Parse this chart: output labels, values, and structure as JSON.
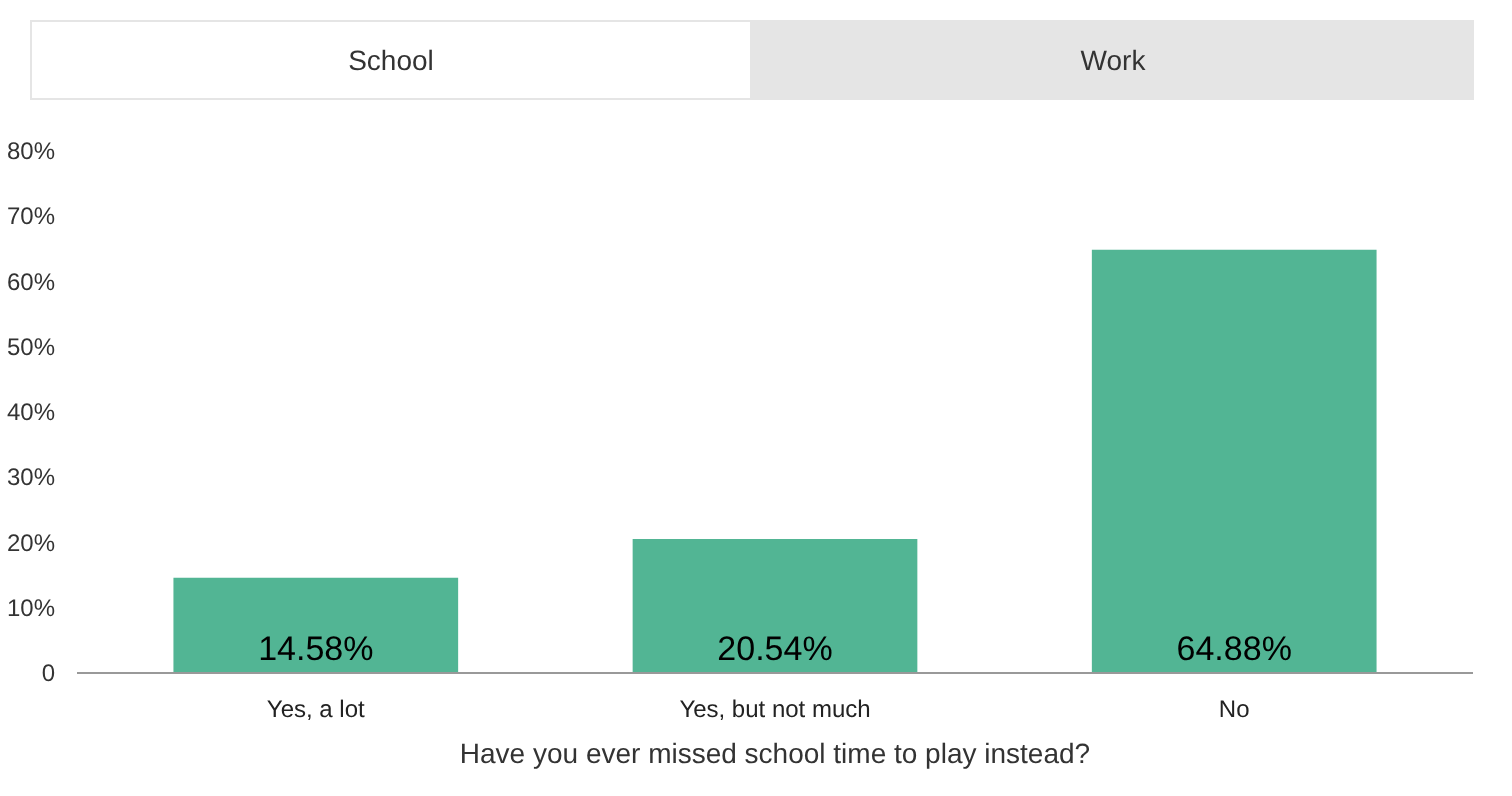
{
  "chart_data": {
    "type": "bar",
    "annotations": [
      "School",
      "Work"
    ],
    "xlabel": "Have you ever missed school time to play instead?",
    "categories": [
      "Yes, a lot",
      "Yes, but not much",
      "No"
    ],
    "values": [
      14.58,
      20.54,
      64.88
    ],
    "value_labels": [
      "14.58%",
      "20.54%",
      "64.88%"
    ],
    "color": "#52b594",
    "ylim": [
      0,
      80
    ],
    "yticks": [
      {
        "value": 0,
        "label": "0"
      },
      {
        "value": 10,
        "label": "10%"
      },
      {
        "value": 20,
        "label": "20%"
      },
      {
        "value": 30,
        "label": "30%"
      },
      {
        "value": 40,
        "label": "40%"
      },
      {
        "value": 50,
        "label": "50%"
      },
      {
        "value": 60,
        "label": "60%"
      },
      {
        "value": 70,
        "label": "70%"
      },
      {
        "value": 80,
        "label": "80%"
      }
    ],
    "grid": false
  }
}
